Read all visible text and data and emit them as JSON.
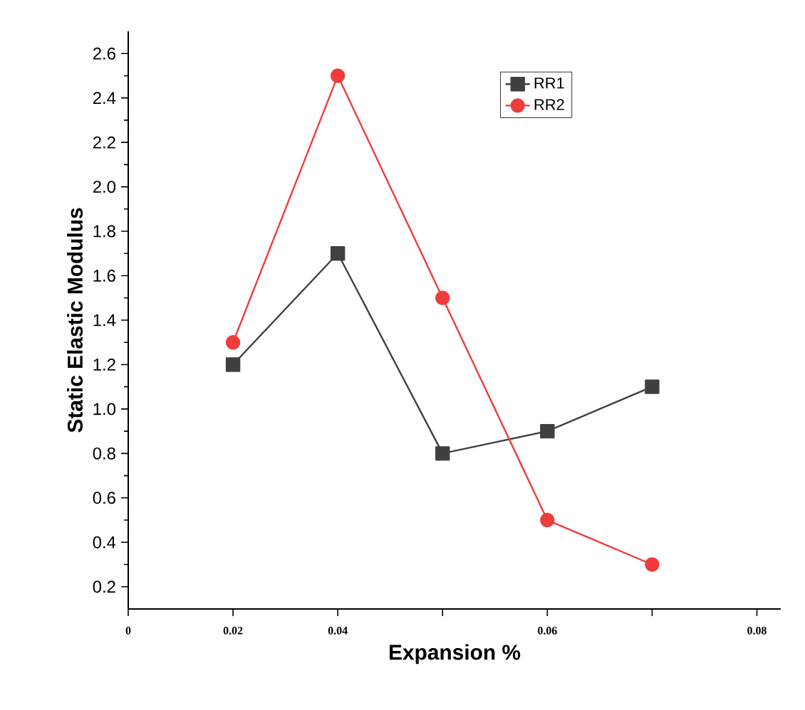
{
  "chart_data": {
    "type": "line",
    "xlabel": "Expansion %",
    "ylabel": "Static Elastic Modulus",
    "categories": [
      "0",
      "0.02",
      "0.04",
      null,
      "0.06",
      null,
      "0.08"
    ],
    "series": [
      {
        "name": "RR1",
        "color": "#404040",
        "marker": "square",
        "values": [
          null,
          1.2,
          1.7,
          0.8,
          0.9,
          1.1,
          null
        ]
      },
      {
        "name": "RR2",
        "color": "#f03c3c",
        "marker": "circle",
        "values": [
          null,
          1.3,
          2.5,
          1.5,
          0.5,
          0.3,
          null
        ]
      }
    ],
    "ylim": [
      0.1,
      2.7
    ],
    "yticks": [
      0.2,
      0.4,
      0.6,
      0.8,
      {
        "value": 1,
        "label": "1.0"
      },
      1.2,
      1.4,
      1.6,
      1.8,
      {
        "value": 2,
        "label": "2.0"
      },
      2.2,
      2.4,
      2.6
    ],
    "grid": false,
    "legend": "top right"
  }
}
